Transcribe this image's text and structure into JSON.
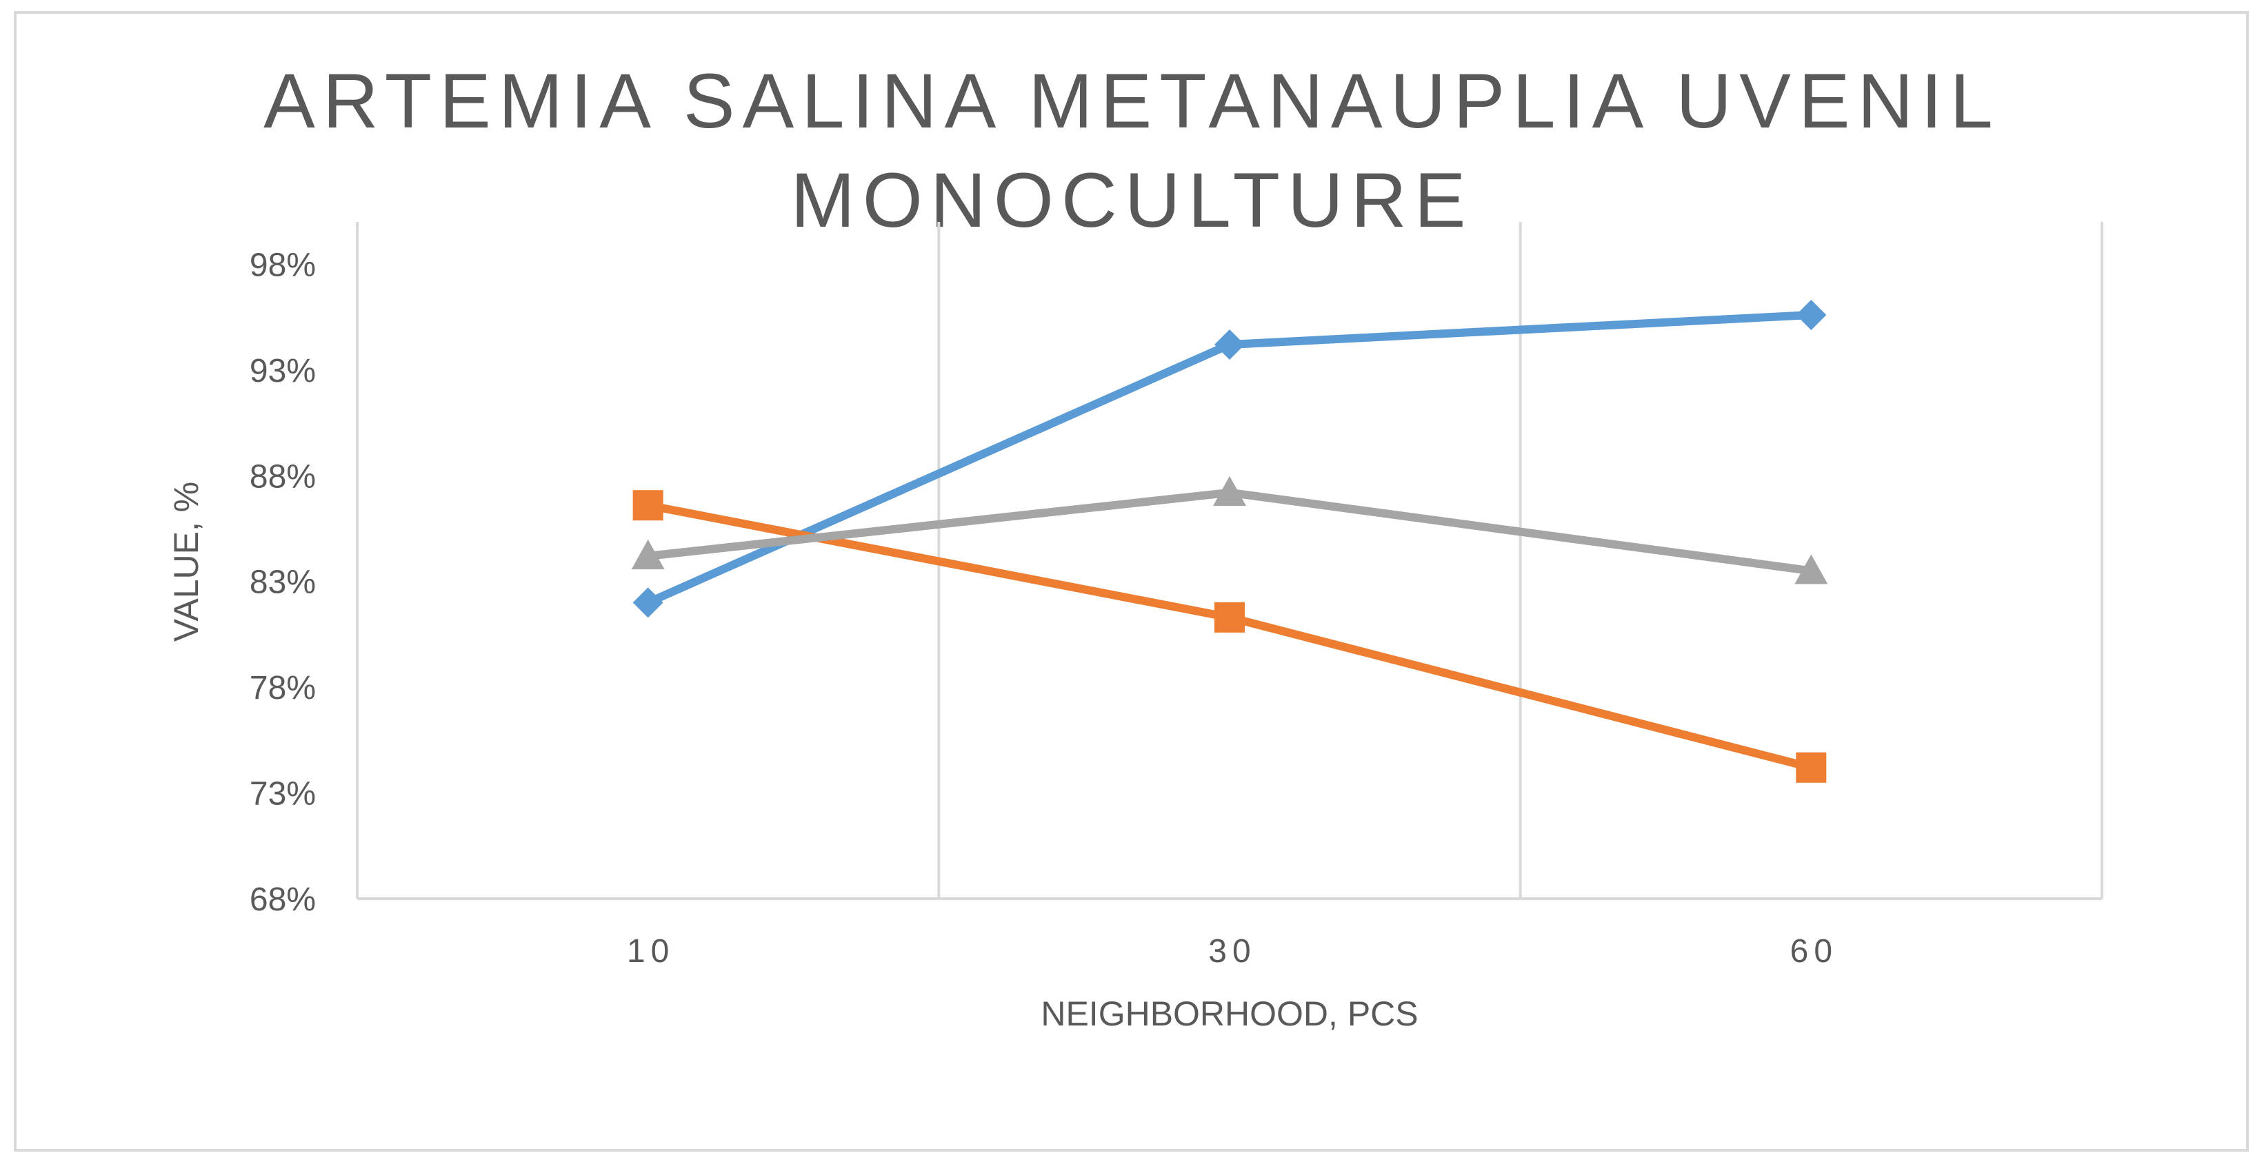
{
  "chart_data": {
    "type": "line",
    "title_lines": [
      "ARTEMIA SALINA METANAUPLIA UVENIL",
      "MONOCULTURE"
    ],
    "xlabel": "NEIGHBORHOOD, PCS",
    "ylabel": "VALUE, %",
    "categories": [
      "10",
      "30",
      "60"
    ],
    "y_ticks": [
      "68%",
      "73%",
      "78%",
      "83%",
      "88%",
      "93%",
      "98%"
    ],
    "ylim": [
      68,
      100
    ],
    "grid": "vertical",
    "legend": "none",
    "series": [
      {
        "color": "#5b9bd5",
        "marker": "diamond",
        "values": [
          82.0,
          94.2,
          95.6
        ]
      },
      {
        "color": "#ed7d31",
        "marker": "square",
        "values": [
          86.6,
          81.3,
          74.2
        ]
      },
      {
        "color": "#a5a5a5",
        "marker": "triangle",
        "values": [
          84.2,
          87.2,
          83.5
        ]
      }
    ]
  }
}
